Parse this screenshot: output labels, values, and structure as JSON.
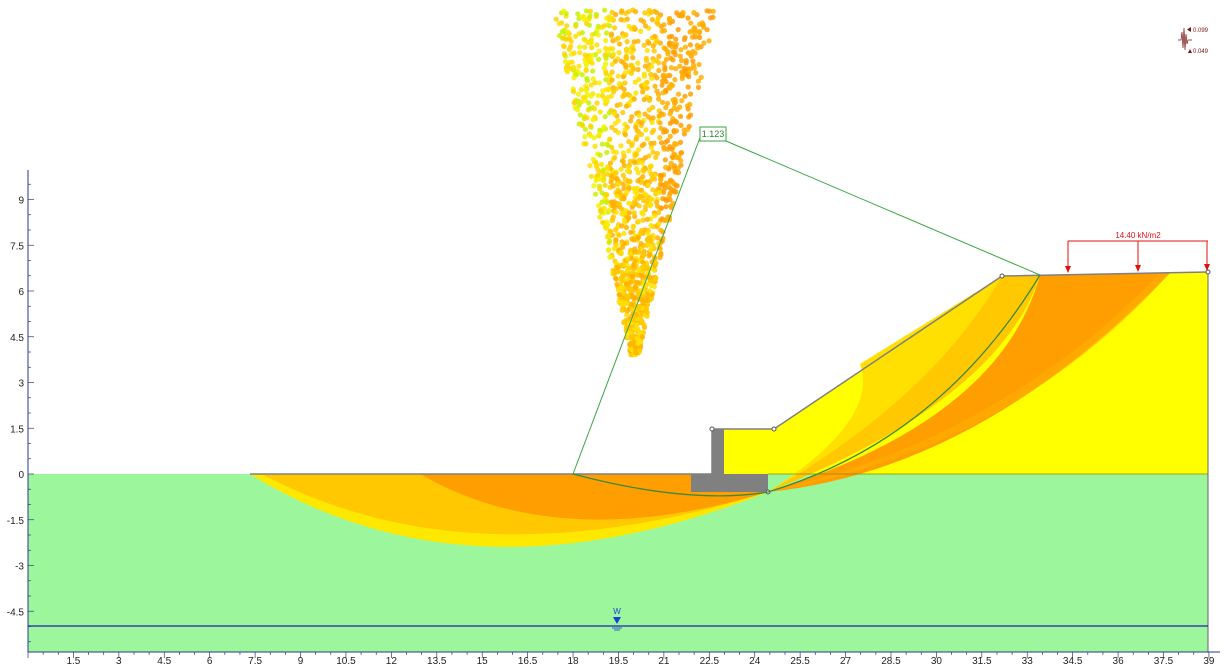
{
  "chart_data": {
    "type": "slope_stability_model",
    "x_ticks": [
      "1.5",
      "3",
      "4.5",
      "6",
      "7.5",
      "9",
      "10.5",
      "12",
      "13.5",
      "15",
      "16.5",
      "18",
      "19.5",
      "21",
      "22.5",
      "24",
      "25.5",
      "27",
      "28.5",
      "30",
      "31.5",
      "33",
      "34.5",
      "36",
      "37.5",
      "39"
    ],
    "y_ticks": [
      "9",
      "7.5",
      "6",
      "4.5",
      "3",
      "1.5",
      "0",
      "-1.5",
      "-3",
      "-4.5"
    ],
    "x_range": [
      0,
      39
    ],
    "y_range": [
      -6,
      10
    ],
    "ground_surface": [
      [
        7.2,
        0
      ],
      [
        21.8,
        0
      ],
      [
        21.8,
        1.5
      ],
      [
        25.0,
        1.5
      ],
      [
        31.8,
        6.5
      ],
      [
        39,
        6.6
      ]
    ],
    "water_table_elevation": -5.0,
    "critical_surface": {
      "entry": [
        18.1,
        0
      ],
      "exit": [
        33.1,
        6.55
      ],
      "lowest": [
        22.8,
        -0.75
      ],
      "factor_of_safety": "1.123"
    },
    "distributed_load": {
      "label": "14.40 kN/m2",
      "x_start": 34.4,
      "x_end": 39,
      "arrow_x": [
        34.4,
        36.6,
        39.0
      ]
    }
  },
  "labels": {
    "fs_label": "1.123",
    "load_label": "14.40 kN/m2",
    "water_label": "W",
    "legend_max": "0.099",
    "legend_min": "0.049"
  },
  "colors": {
    "lower_soil": "#9cf79c",
    "upper_soil": "#ffff00",
    "slip_orange": "#ff9e00",
    "slip_gold": "#ffc800",
    "slip_yellow": "#ffe800",
    "wall": "#808080",
    "water": "#1f1fb4",
    "load": "#e01010",
    "fs_line": "#3aa640"
  }
}
